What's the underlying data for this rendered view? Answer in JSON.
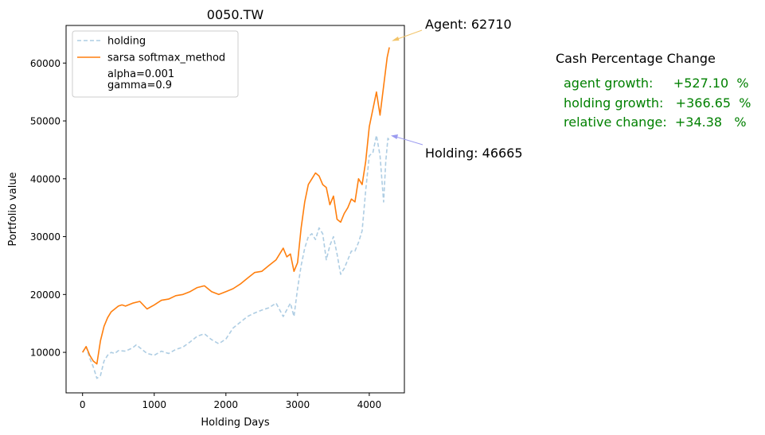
{
  "chart_data": {
    "type": "line",
    "title": "0050.TW",
    "xlabel": "Holding Days",
    "ylabel": "Portfolio value",
    "xlim": [
      -230,
      4490
    ],
    "ylim": [
      3000,
      66500
    ],
    "xticks": [
      0,
      1000,
      2000,
      3000,
      4000
    ],
    "yticks": [
      10000,
      20000,
      30000,
      40000,
      50000,
      60000
    ],
    "grid": false,
    "legend": {
      "placement": "top-left",
      "entries": [
        "holding",
        "sarsa softmax_method"
      ],
      "note": "alpha=0.001\ngamma=0.9"
    },
    "series": [
      {
        "name": "holding",
        "color": "#aecde3",
        "style": "dashed",
        "x": [
          0,
          50,
          100,
          150,
          200,
          250,
          300,
          350,
          400,
          450,
          500,
          600,
          700,
          750,
          800,
          900,
          1000,
          1100,
          1200,
          1300,
          1400,
          1500,
          1600,
          1700,
          1800,
          1900,
          2000,
          2100,
          2200,
          2300,
          2400,
          2500,
          2600,
          2700,
          2800,
          2900,
          2950,
          3000,
          3050,
          3100,
          3150,
          3200,
          3250,
          3300,
          3350,
          3400,
          3450,
          3500,
          3550,
          3600,
          3650,
          3700,
          3750,
          3800,
          3850,
          3900,
          3950,
          4000,
          4050,
          4100,
          4150,
          4200,
          4230,
          4260,
          4280
        ],
        "values": [
          10000,
          11000,
          9000,
          7500,
          5500,
          6000,
          8500,
          9500,
          10000,
          9800,
          10300,
          10200,
          10800,
          11300,
          10800,
          9800,
          9500,
          10200,
          9800,
          10500,
          10900,
          11800,
          12800,
          13200,
          12200,
          11500,
          12300,
          14200,
          15200,
          16200,
          16800,
          17300,
          17700,
          18500,
          16200,
          18500,
          16200,
          21000,
          25000,
          28000,
          30000,
          30500,
          29500,
          31500,
          30500,
          26000,
          28500,
          30000,
          27000,
          23500,
          24500,
          26000,
          27500,
          27500,
          29000,
          31000,
          38000,
          44000,
          44500,
          47500,
          44000,
          36000,
          43000,
          47000,
          46665
        ]
      },
      {
        "name": "sarsa softmax_method",
        "color": "#ff7f0e",
        "style": "solid",
        "x": [
          0,
          50,
          100,
          150,
          200,
          250,
          300,
          350,
          400,
          450,
          500,
          550,
          600,
          700,
          800,
          900,
          1000,
          1100,
          1200,
          1300,
          1400,
          1500,
          1600,
          1700,
          1800,
          1900,
          2000,
          2100,
          2200,
          2300,
          2400,
          2500,
          2600,
          2700,
          2800,
          2850,
          2900,
          2950,
          3000,
          3050,
          3100,
          3150,
          3200,
          3250,
          3300,
          3350,
          3400,
          3450,
          3500,
          3550,
          3600,
          3650,
          3700,
          3750,
          3800,
          3850,
          3900,
          3950,
          4000,
          4050,
          4100,
          4150,
          4200,
          4250,
          4280
        ],
        "values": [
          10000,
          11000,
          9500,
          8500,
          8000,
          12000,
          14500,
          16000,
          17000,
          17500,
          18000,
          18200,
          18000,
          18500,
          18800,
          17500,
          18200,
          19000,
          19200,
          19800,
          20000,
          20500,
          21200,
          21500,
          20500,
          20000,
          20500,
          21000,
          21800,
          22800,
          23800,
          24000,
          25000,
          26000,
          28000,
          26500,
          27000,
          24000,
          25500,
          31500,
          36000,
          39000,
          40000,
          41000,
          40500,
          39000,
          38500,
          35500,
          37000,
          33000,
          32500,
          34000,
          35000,
          36500,
          36000,
          40000,
          39000,
          43000,
          49000,
          52000,
          55000,
          51000,
          56000,
          61000,
          62710
        ]
      }
    ],
    "annotations": [
      {
        "text": "Agent: 62710",
        "x": 4280,
        "y": 62710,
        "color": "#f2c46a"
      },
      {
        "text": "Holding: 46665",
        "x": 4280,
        "y": 46665,
        "color": "#9b9bf0"
      }
    ]
  },
  "side_panel": {
    "title": "Cash Percentage Change",
    "text_color": "#008000",
    "lines": [
      "agent growth:     +527.10  %",
      "holding growth:   +366.65  %",
      "relative change:  +34.38   %"
    ]
  }
}
